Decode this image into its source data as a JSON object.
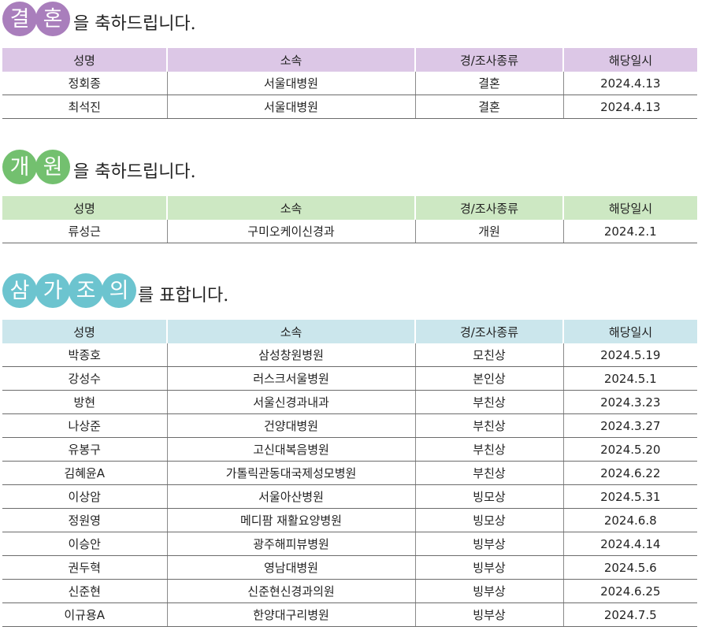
{
  "columns": [
    "성명",
    "소속",
    "경/조사종류",
    "해당일시"
  ],
  "wedding": {
    "title_chars": [
      "결",
      "혼"
    ],
    "suffix": "을 축하드립니다.",
    "rows": [
      [
        "정회종",
        "서울대병원",
        "결혼",
        "2024.4.13"
      ],
      [
        "최석진",
        "서울대병원",
        "결혼",
        "2024.4.13"
      ]
    ]
  },
  "opening": {
    "title_chars": [
      "개",
      "원"
    ],
    "suffix": "을 축하드립니다.",
    "rows": [
      [
        "류성근",
        "구미오케이신경과",
        "개원",
        "2024.2.1"
      ]
    ]
  },
  "condolence": {
    "title_chars": [
      "삼",
      "가",
      "조",
      "의"
    ],
    "suffix": "를 표합니다.",
    "rows": [
      [
        "박종호",
        "삼성창원병원",
        "모친상",
        "2024.5.19"
      ],
      [
        "강성수",
        "러스크서울병원",
        "본인상",
        "2024.5.1"
      ],
      [
        "방현",
        "서울신경과내과",
        "부친상",
        "2024.3.23"
      ],
      [
        "나상준",
        "건양대병원",
        "부친상",
        "2024.3.27"
      ],
      [
        "유봉구",
        "고신대복음병원",
        "부친상",
        "2024.5.20"
      ],
      [
        "김혜윤A",
        "가톨릭관동대국제성모병원",
        "부친상",
        "2024.6.22"
      ],
      [
        "이상암",
        "서울아산병원",
        "빙모상",
        "2024.5.31"
      ],
      [
        "정원영",
        "메디팜 재활요양병원",
        "빙모상",
        "2024.6.8"
      ],
      [
        "이승안",
        "광주해피뷰병원",
        "빙부상",
        "2024.4.14"
      ],
      [
        "권두혁",
        "영남대병원",
        "빙부상",
        "2024.5.6"
      ],
      [
        "신준현",
        "신준현신경과의원",
        "빙부상",
        "2024.6.25"
      ],
      [
        "이규용A",
        "한양대구리병원",
        "빙부상",
        "2024.7.5"
      ]
    ]
  },
  "colors": {
    "wedding_accent": "#a97ebc",
    "wedding_header": "#dcc7e6",
    "opening_accent": "#73c06f",
    "opening_header": "#cde8c3",
    "condolence_accent": "#6cc4cf",
    "condolence_header": "#cbe6ec"
  }
}
